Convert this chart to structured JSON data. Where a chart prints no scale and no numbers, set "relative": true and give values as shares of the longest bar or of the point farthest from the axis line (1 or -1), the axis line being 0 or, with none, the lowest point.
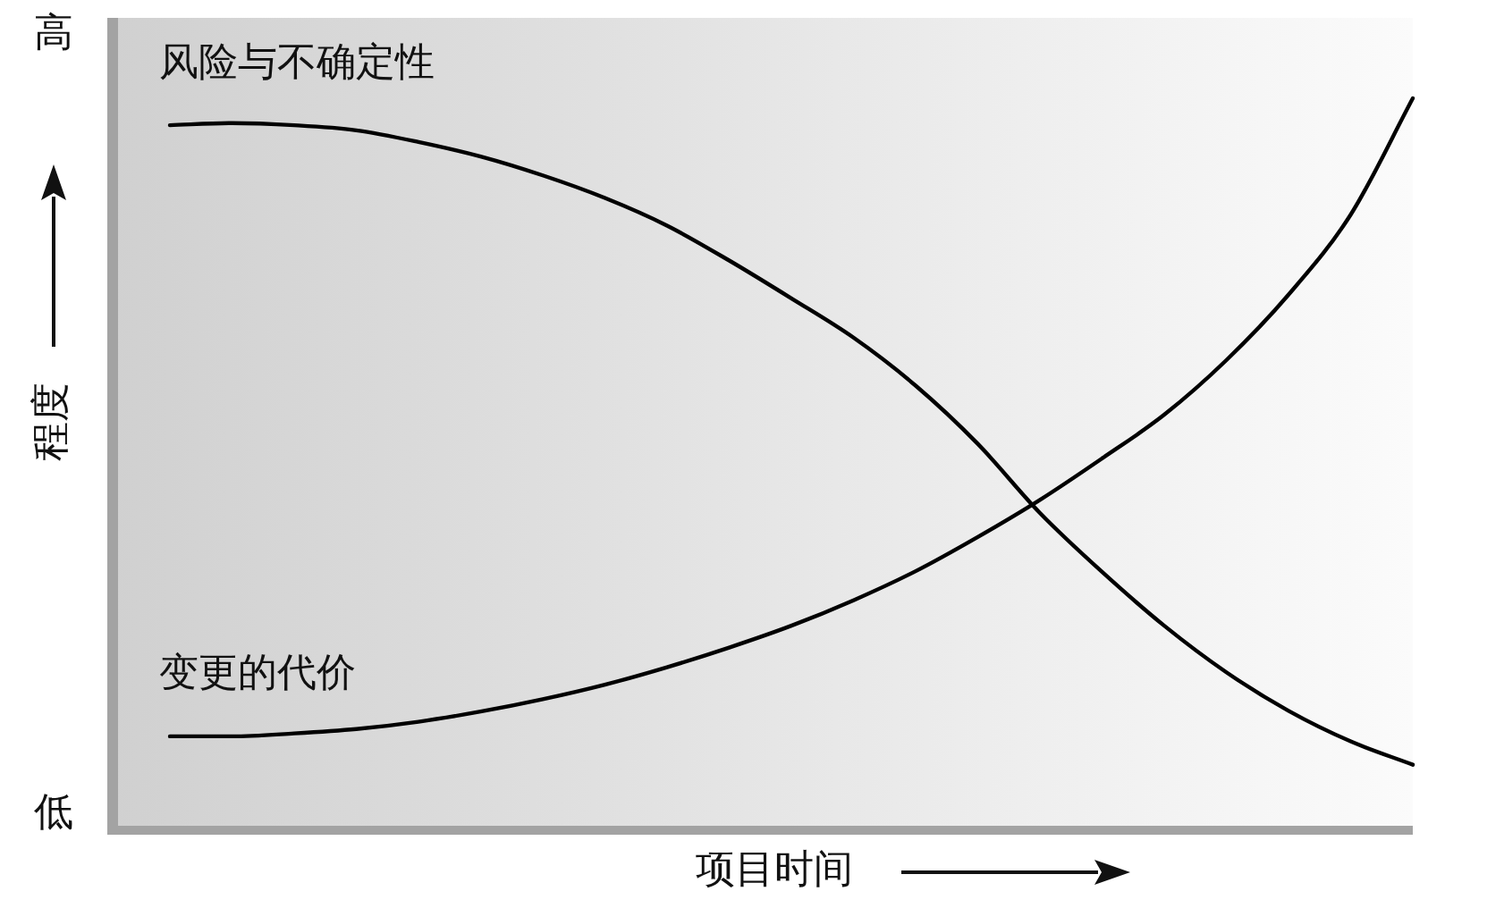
{
  "chart_data": {
    "type": "line",
    "ylabel": "程度",
    "xlabel": "项目时间",
    "annotations": [
      "高",
      "低"
    ],
    "relative": true,
    "categories": [
      null,
      null,
      null,
      null,
      null,
      null,
      null,
      null,
      null,
      null,
      null,
      null,
      null,
      null,
      null,
      null,
      null,
      null,
      null,
      null,
      null
    ],
    "series": [
      {
        "name": "风险与不确定性",
        "color": "#000000",
        "values": [
          0.963,
          0.966,
          0.963,
          0.956,
          0.94,
          0.92,
          0.894,
          0.863,
          0.825,
          0.777,
          0.725,
          0.671,
          0.605,
          0.525,
          0.43,
          0.349,
          0.275,
          0.211,
          0.158,
          0.116,
          0.084
        ]
      },
      {
        "name": "变更的代价",
        "color": "#000000",
        "values": [
          0.123,
          0.123,
          0.127,
          0.133,
          0.143,
          0.157,
          0.174,
          0.194,
          0.218,
          0.245,
          0.275,
          0.31,
          0.35,
          0.397,
          0.448,
          0.505,
          0.565,
          0.64,
          0.73,
          0.84,
          1
        ]
      }
    ],
    "legend": false,
    "grid": false,
    "marker": "none",
    "line_style": "solid"
  }
}
